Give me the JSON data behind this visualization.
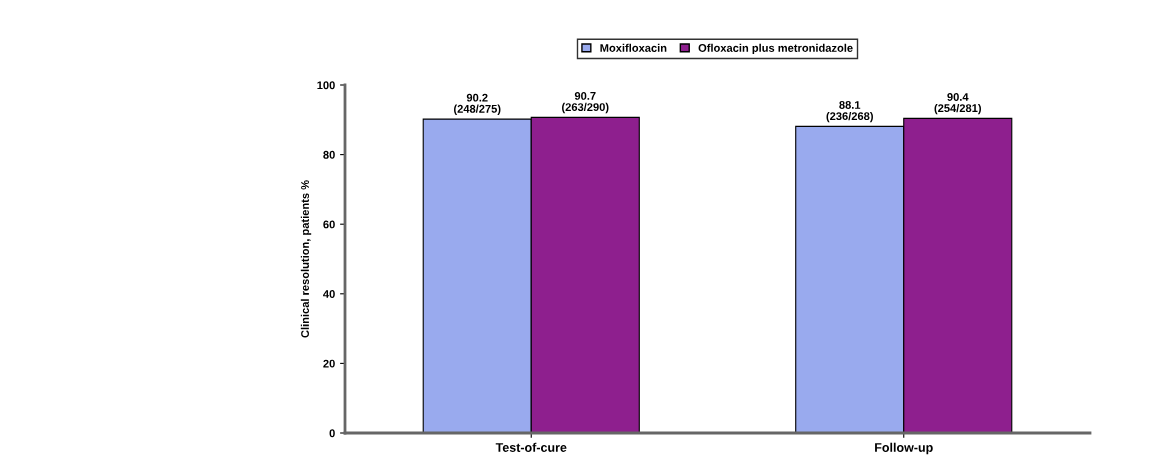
{
  "chart_data": {
    "type": "bar",
    "categories": [
      "Test-of-cure",
      "Follow-up"
    ],
    "ylabel": "Clinical resolution, patients %",
    "series": [
      {
        "name": "Moxifloxacin",
        "color": "#99aaee",
        "values": [
          90.2,
          88.1
        ],
        "value_labels": [
          "90.2\n(248/275)",
          "88.1\n(236/268)"
        ]
      },
      {
        "name": "Ofloxacin plus metronidazole",
        "color": "#8e1f8e",
        "values": [
          90.7,
          90.4
        ],
        "value_labels": [
          "90.7\n(263/290)",
          "90.4\n(254/281)"
        ]
      }
    ],
    "ylim": [
      0,
      100
    ],
    "yticks": [
      0,
      20,
      40,
      60,
      80,
      100
    ],
    "grid": false,
    "legend": "top"
  }
}
